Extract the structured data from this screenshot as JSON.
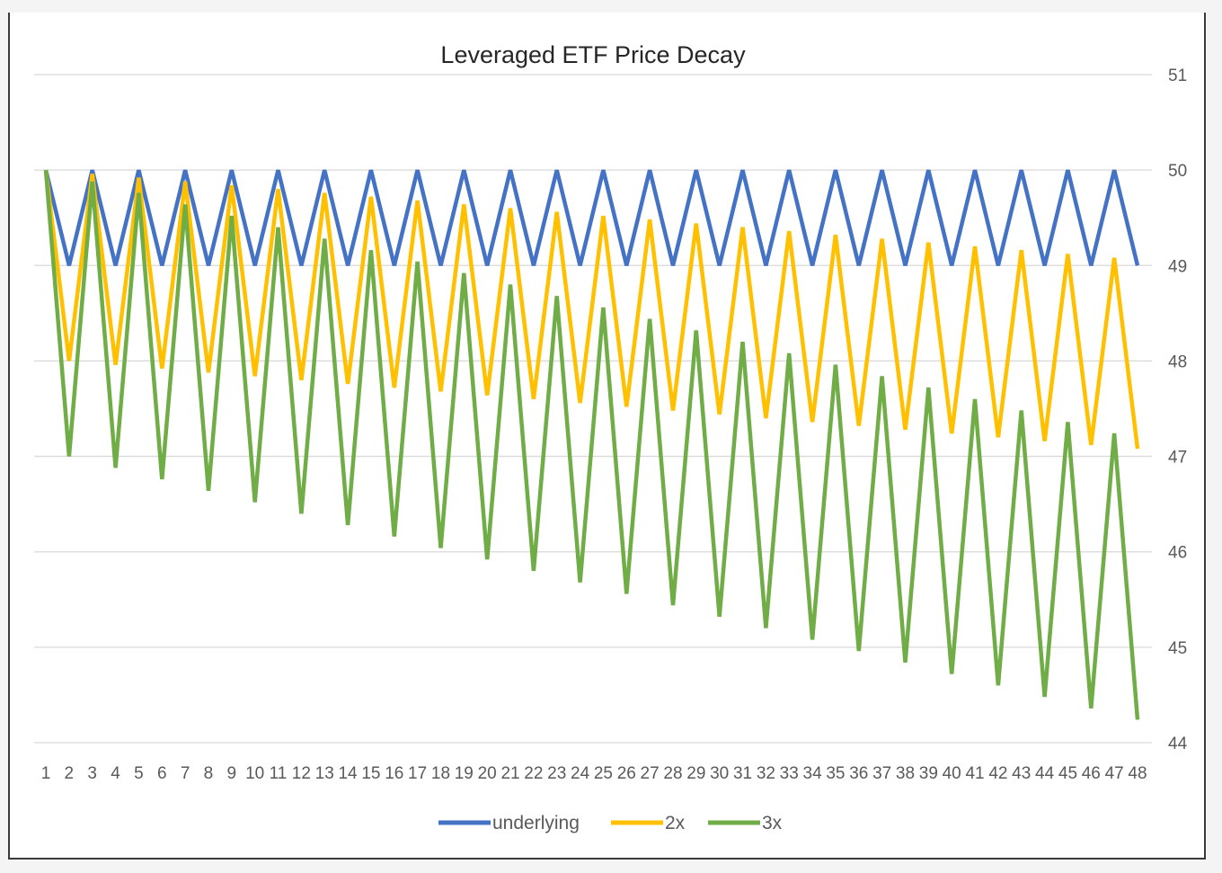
{
  "chart_data": {
    "type": "line",
    "title": "Leveraged ETF Price Decay",
    "x": [
      1,
      2,
      3,
      4,
      5,
      6,
      7,
      8,
      9,
      10,
      11,
      12,
      13,
      14,
      15,
      16,
      17,
      18,
      19,
      20,
      21,
      22,
      23,
      24,
      25,
      26,
      27,
      28,
      29,
      30,
      31,
      32,
      33,
      34,
      35,
      36,
      37,
      38,
      39,
      40,
      41,
      42,
      43,
      44,
      45,
      46,
      47,
      48
    ],
    "ylim": [
      44,
      51
    ],
    "yticks": [
      44,
      45,
      46,
      47,
      48,
      49,
      50,
      51
    ],
    "y_axis_position": "right",
    "grid": true,
    "legend_position": "bottom",
    "series": [
      {
        "name": "underlying",
        "color": "#4472C4",
        "values": [
          50,
          49,
          50,
          49,
          50,
          49,
          50,
          49,
          50,
          49,
          50,
          49,
          50,
          49,
          50,
          49,
          50,
          49,
          50,
          49,
          50,
          49,
          50,
          49,
          50,
          49,
          50,
          49,
          50,
          49,
          50,
          49,
          50,
          49,
          50,
          49,
          50,
          49,
          50,
          49,
          50,
          49,
          50,
          49,
          50,
          49,
          50,
          49
        ]
      },
      {
        "name": "2x",
        "color": "#FFC000",
        "values": [
          50,
          48,
          49.96,
          47.96,
          49.92,
          47.92,
          49.88,
          47.88,
          49.84,
          47.84,
          49.8,
          47.8,
          49.76,
          47.76,
          49.72,
          47.72,
          49.68,
          47.68,
          49.64,
          47.64,
          49.6,
          47.6,
          49.56,
          47.56,
          49.52,
          47.52,
          49.48,
          47.48,
          49.44,
          47.44,
          49.4,
          47.4,
          49.36,
          47.36,
          49.32,
          47.32,
          49.28,
          47.28,
          49.24,
          47.24,
          49.2,
          47.2,
          49.16,
          47.16,
          49.12,
          47.12,
          49.08,
          47.08
        ]
      },
      {
        "name": "3x",
        "color": "#70AD47",
        "values": [
          50,
          47,
          49.88,
          46.88,
          49.76,
          46.76,
          49.64,
          46.64,
          49.52,
          46.52,
          49.4,
          46.4,
          49.28,
          46.28,
          49.16,
          46.16,
          49.04,
          46.04,
          48.92,
          45.92,
          48.8,
          45.8,
          48.68,
          45.68,
          48.56,
          45.56,
          48.44,
          45.44,
          48.32,
          45.32,
          48.2,
          45.2,
          48.08,
          45.08,
          47.96,
          44.96,
          47.84,
          44.84,
          47.72,
          44.72,
          47.6,
          44.6,
          47.48,
          44.48,
          47.36,
          44.36,
          47.24,
          44.24
        ]
      }
    ]
  }
}
